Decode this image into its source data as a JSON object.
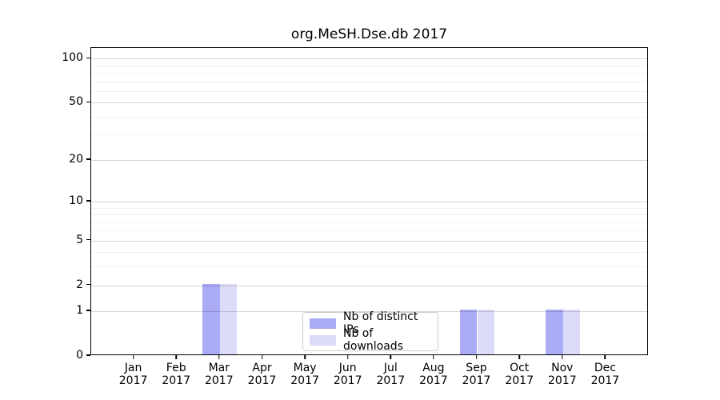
{
  "chart_data": {
    "type": "bar",
    "title": "org.MeSH.Dse.db 2017",
    "categories": [
      "Jan",
      "Feb",
      "Mar",
      "Apr",
      "May",
      "Jun",
      "Jul",
      "Aug",
      "Sep",
      "Oct",
      "Nov",
      "Dec"
    ],
    "category_year": "2017",
    "series": [
      {
        "name": "Nb of distinct IPs",
        "color": "#aaaaf5",
        "values": [
          0,
          0,
          2,
          0,
          0,
          0,
          0,
          0,
          1,
          0,
          1,
          0
        ]
      },
      {
        "name": "Nb of downloads",
        "color": "#dcdcf8",
        "values": [
          0,
          0,
          2,
          0,
          0,
          0,
          0,
          0,
          1,
          0,
          1,
          0
        ]
      }
    ],
    "y_axis": {
      "scale": "log1p",
      "ticks": [
        0,
        1,
        2,
        5,
        10,
        20,
        50,
        100
      ],
      "minor_gridlines": [
        3,
        4,
        6,
        7,
        8,
        9,
        30,
        40,
        60,
        70,
        80,
        90
      ],
      "range_top": 118
    },
    "x_axis": {
      "label_lines": 2
    },
    "legend": {
      "position": "bottom-center"
    },
    "colors": {
      "spine": "#000000",
      "grid_major": "rgba(0,0,0,0.16)",
      "grid_minor": "rgba(0,0,0,0.055)",
      "background": "#ffffff"
    }
  }
}
